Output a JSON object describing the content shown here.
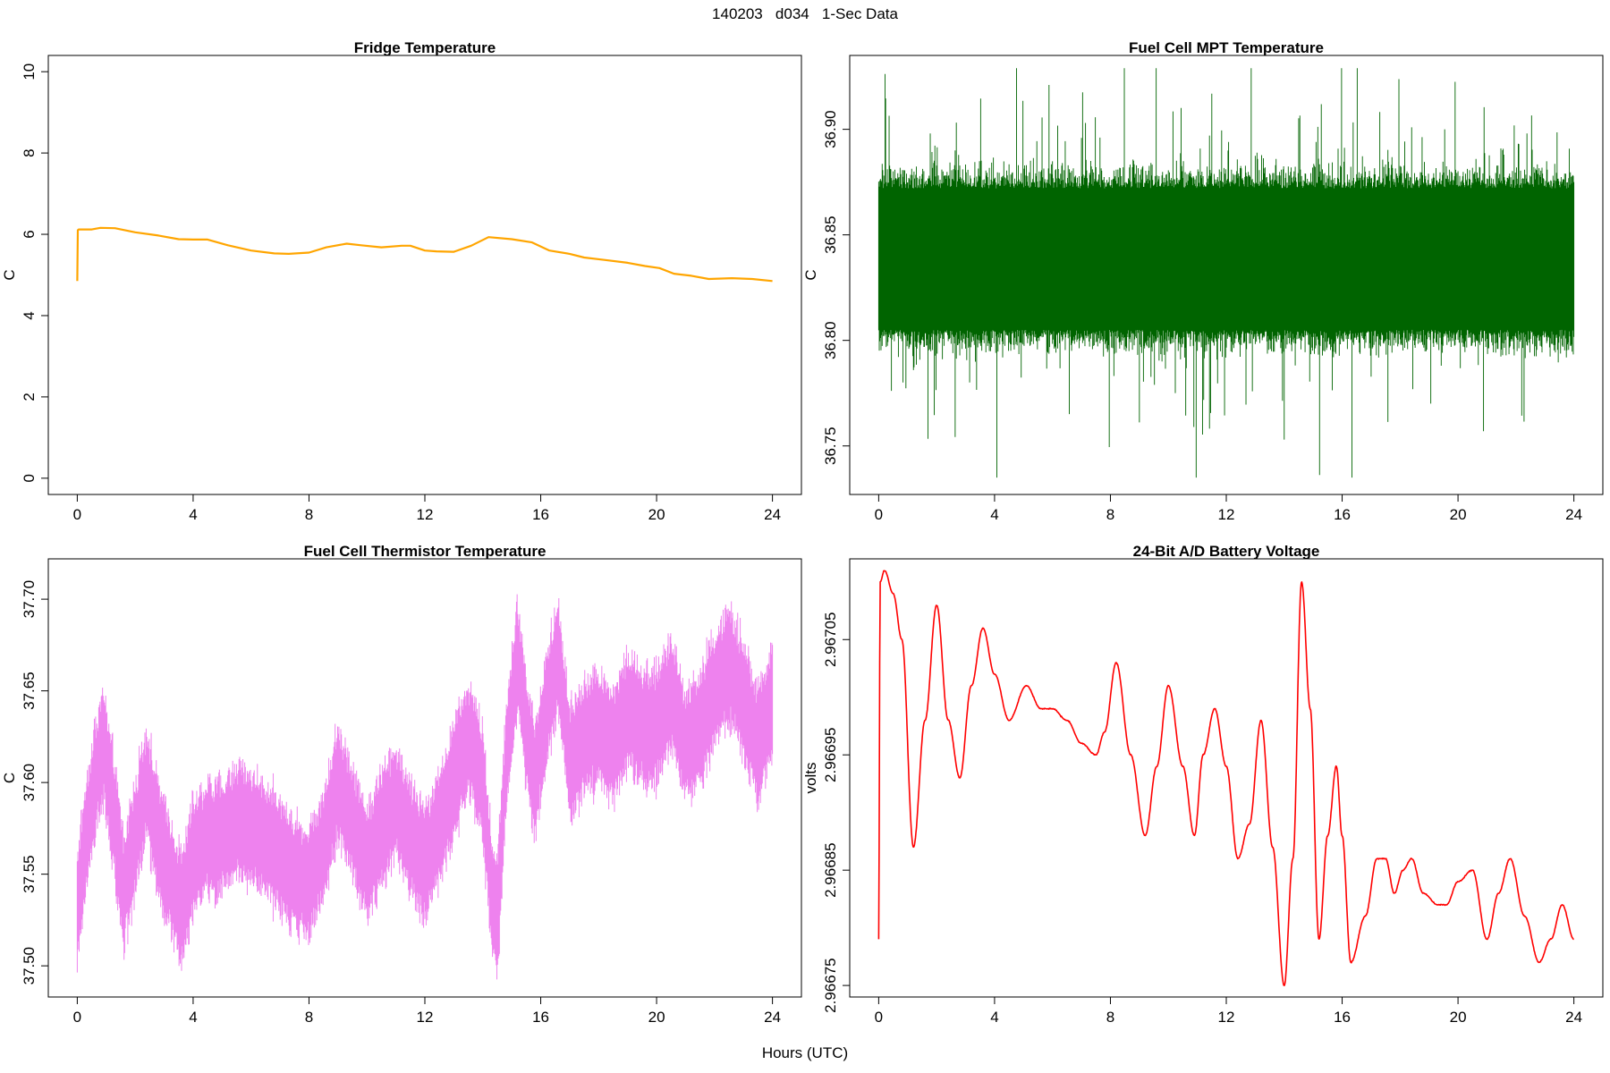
{
  "figure": {
    "title": "140203   d034   1-Sec Data",
    "xlabel": "Hours (UTC)"
  },
  "chart_data": [
    {
      "type": "line",
      "title": "Fridge Temperature",
      "xlabel": "Hours (UTC)",
      "ylabel": "C",
      "xlim": [
        -1,
        25
      ],
      "ylim": [
        -0.4,
        10.4
      ],
      "xticks": [
        0,
        4,
        8,
        12,
        16,
        20,
        24
      ],
      "yticks": [
        0,
        2,
        4,
        6,
        8,
        10
      ],
      "ytick_labels": [
        "0",
        "2",
        "4",
        "6",
        "8",
        "10"
      ],
      "color": "#FFA500",
      "render": "line",
      "series": [
        {
          "name": "Fridge Temperature",
          "x": [
            0,
            0.02,
            0.05,
            0.5,
            0.8,
            1.3,
            2,
            2.8,
            3.5,
            4,
            4.5,
            5.2,
            6,
            6.8,
            7.3,
            8,
            8.6,
            9.3,
            9.8,
            10.5,
            11.2,
            11.5,
            12,
            12.4,
            13,
            13.6,
            14.2,
            15,
            15.7,
            16.3,
            17,
            17.5,
            18.2,
            19,
            19.6,
            20.1,
            20.6,
            21.2,
            21.8,
            22.6,
            23.3,
            24
          ],
          "y": [
            4.85,
            6.1,
            6.12,
            6.12,
            6.16,
            6.15,
            6.05,
            5.97,
            5.88,
            5.87,
            5.87,
            5.73,
            5.6,
            5.53,
            5.52,
            5.55,
            5.68,
            5.77,
            5.73,
            5.68,
            5.72,
            5.72,
            5.6,
            5.58,
            5.57,
            5.72,
            5.93,
            5.88,
            5.8,
            5.6,
            5.52,
            5.43,
            5.37,
            5.3,
            5.22,
            5.17,
            5.03,
            4.98,
            4.9,
            4.92,
            4.9,
            4.85
          ]
        }
      ]
    },
    {
      "type": "line",
      "title": "Fuel Cell MPT Temperature",
      "xlabel": "Hours (UTC)",
      "ylabel": "C",
      "xlim": [
        -1,
        25
      ],
      "ylim": [
        36.727,
        36.935
      ],
      "xticks": [
        0,
        4,
        8,
        12,
        16,
        20,
        24
      ],
      "yticks": [
        36.75,
        36.8,
        36.85,
        36.9
      ],
      "ytick_labels": [
        "36.75",
        "36.80",
        "36.85",
        "36.90"
      ],
      "color": "#006400",
      "render": "noise",
      "series": [
        {
          "name": "Fuel Cell MPT Temperature",
          "x": [
            0,
            2,
            4,
            6,
            8,
            10,
            12,
            14,
            16,
            18,
            20,
            22,
            24
          ],
          "y": [
            36.84,
            36.84,
            36.84,
            36.84,
            36.84,
            36.84,
            36.84,
            36.84,
            36.84,
            36.84,
            36.84,
            36.84,
            36.84
          ],
          "band": [
            36.805,
            36.872
          ],
          "range": [
            36.735,
            36.929
          ]
        }
      ]
    },
    {
      "type": "line",
      "title": "Fuel Cell Thermistor Temperature",
      "xlabel": "Hours (UTC)",
      "ylabel": "C",
      "xlim": [
        -1,
        25
      ],
      "ylim": [
        37.483,
        37.722
      ],
      "xticks": [
        0,
        4,
        8,
        12,
        16,
        20,
        24
      ],
      "yticks": [
        37.5,
        37.55,
        37.6,
        37.65,
        37.7
      ],
      "ytick_labels": [
        "37.50",
        "37.55",
        "37.60",
        "37.65",
        "37.70"
      ],
      "color": "#EE82EE",
      "render": "band",
      "series": [
        {
          "name": "Fuel Cell Thermistor Temperature",
          "x": [
            0,
            0.3,
            0.6,
            0.9,
            1.2,
            1.6,
            2,
            2.4,
            2.8,
            3.2,
            3.6,
            4,
            4.5,
            5,
            5.5,
            6,
            6.5,
            7,
            7.5,
            8,
            8.5,
            9,
            9.5,
            10,
            10.5,
            11,
            11.5,
            12,
            12.5,
            13,
            13.5,
            14,
            14.3,
            14.5,
            14.8,
            15.2,
            15.5,
            15.8,
            16.2,
            16.6,
            17,
            17.5,
            18,
            18.5,
            19,
            19.5,
            20,
            20.5,
            21,
            21.5,
            22,
            22.5,
            23,
            23.5,
            24
          ],
          "y": [
            37.53,
            37.57,
            37.6,
            37.62,
            37.59,
            37.54,
            37.57,
            37.6,
            37.57,
            37.55,
            37.53,
            37.56,
            37.57,
            37.57,
            37.58,
            37.575,
            37.57,
            37.56,
            37.55,
            37.545,
            37.565,
            37.6,
            37.58,
            37.555,
            37.575,
            37.59,
            37.57,
            37.555,
            37.575,
            37.6,
            37.625,
            37.6,
            37.54,
            37.525,
            37.61,
            37.67,
            37.63,
            37.6,
            37.64,
            37.67,
            37.61,
            37.625,
            37.63,
            37.62,
            37.64,
            37.63,
            37.63,
            37.65,
            37.62,
            37.63,
            37.65,
            37.665,
            37.645,
            37.62,
            37.645
          ],
          "band": [
            0.022,
            0.034
          ]
        }
      ]
    },
    {
      "type": "line",
      "title": "24-Bit A/D Battery Voltage",
      "xlabel": "Hours (UTC)",
      "ylabel": "volts",
      "xlim": [
        -1,
        25
      ],
      "ylim": [
        2.96674,
        2.96712
      ],
      "xticks": [
        0,
        4,
        8,
        12,
        16,
        20,
        24
      ],
      "yticks": [
        2.96675,
        2.96685,
        2.96695,
        2.96705
      ],
      "ytick_labels": [
        "2.96675",
        "2.96685",
        "2.96695",
        "2.96705"
      ],
      "color": "#FF0000",
      "render": "line",
      "series": [
        {
          "name": "24-Bit A/D Battery Voltage",
          "x": [
            0,
            0.05,
            0.2,
            0.5,
            0.8,
            1.2,
            1.6,
            2,
            2.4,
            2.8,
            3.2,
            3.6,
            4,
            4.5,
            5.1,
            5.6,
            6,
            6.5,
            7,
            7.5,
            7.8,
            8.2,
            8.7,
            9.2,
            9.6,
            10,
            10.5,
            10.9,
            11.2,
            11.6,
            12,
            12.4,
            12.8,
            13.2,
            13.6,
            14,
            14.3,
            14.6,
            14.9,
            15.2,
            15.5,
            15.8,
            16,
            16.3,
            16.8,
            17.2,
            17.5,
            17.8,
            18.1,
            18.4,
            18.8,
            19.3,
            19.6,
            20,
            20.5,
            21,
            21.4,
            21.8,
            22.3,
            22.8,
            23.2,
            23.6,
            24
          ],
          "y": [
            2.96679,
            2.9671,
            2.96711,
            2.96709,
            2.96705,
            2.96687,
            2.96698,
            2.96708,
            2.96698,
            2.96693,
            2.96701,
            2.96706,
            2.96702,
            2.96698,
            2.96701,
            2.96699,
            2.96699,
            2.96698,
            2.96696,
            2.96695,
            2.96697,
            2.96703,
            2.96695,
            2.96688,
            2.96694,
            2.96701,
            2.96694,
            2.96688,
            2.96695,
            2.96699,
            2.96694,
            2.96686,
            2.96689,
            2.96698,
            2.96687,
            2.96675,
            2.96686,
            2.9671,
            2.96699,
            2.96679,
            2.96688,
            2.96694,
            2.96688,
            2.96677,
            2.96681,
            2.96686,
            2.96686,
            2.96683,
            2.96685,
            2.96686,
            2.96683,
            2.96682,
            2.96682,
            2.96684,
            2.96685,
            2.96679,
            2.96683,
            2.96686,
            2.96681,
            2.96677,
            2.96679,
            2.96682,
            2.96679
          ],
          "jitter": 2e-07
        }
      ]
    }
  ]
}
